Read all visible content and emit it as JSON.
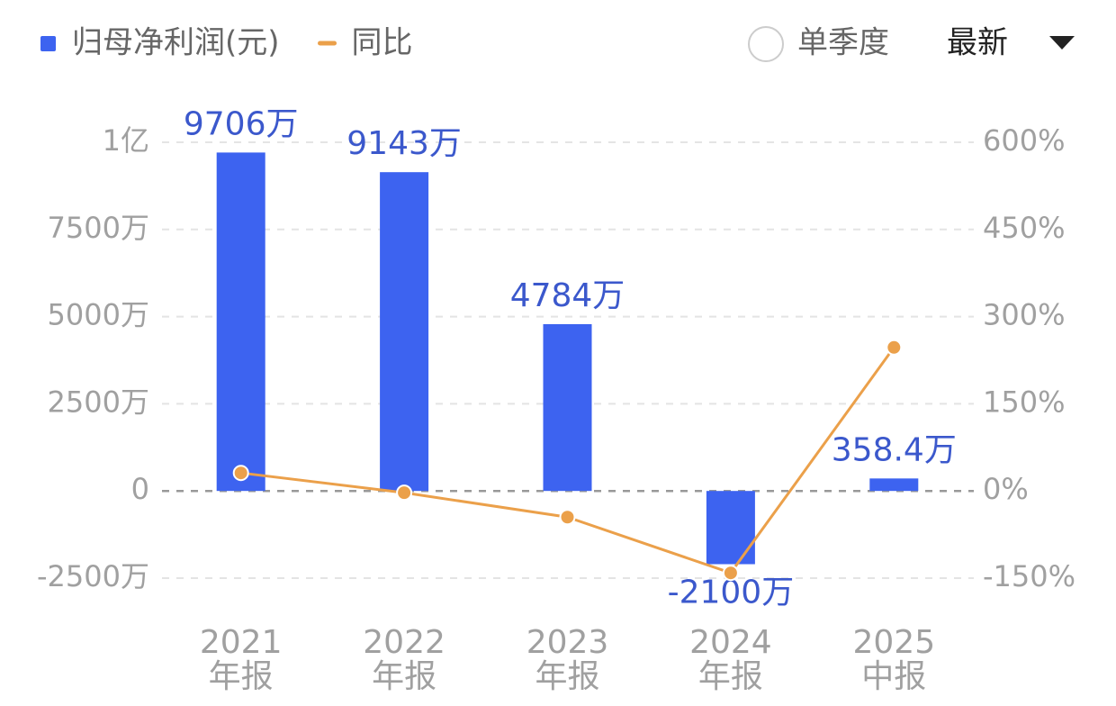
{
  "chart_data": {
    "type": "bar",
    "categories": [
      "2021年报",
      "2022年报",
      "2023年报",
      "2024年报",
      "2025中报"
    ],
    "series": [
      {
        "name": "归母净利润(元)",
        "color": "#3d63f0",
        "type": "bar",
        "values": [
          97060000,
          91430000,
          47840000,
          -21000000,
          3584000
        ],
        "value_labels": [
          "9706万",
          "9143万",
          "4784万",
          "-2100万",
          "358.4万"
        ]
      },
      {
        "name": "同比",
        "color": "#eba04a",
        "type": "line",
        "axis": "y2",
        "values": [
          31,
          -3,
          -45,
          -141,
          247
        ]
      }
    ],
    "ylim": [
      -25000000,
      100000000
    ],
    "yticks": [
      {
        "value": -25000000,
        "label": "-2500万"
      },
      0,
      {
        "value": 25000000,
        "label": "2500万"
      },
      {
        "value": 50000000,
        "label": "5000万"
      },
      {
        "value": 75000000,
        "label": "7500万"
      },
      {
        "value": 100000000,
        "label": "1亿"
      }
    ],
    "y2lim": [
      -150,
      600
    ],
    "y2ticks": [
      {
        "value": -150,
        "label": "-150%"
      },
      {
        "value": 0,
        "label": "0%"
      },
      {
        "value": 150,
        "label": "150%"
      },
      {
        "value": 300,
        "label": "300%"
      },
      {
        "value": 450,
        "label": "450%"
      },
      {
        "value": 600,
        "label": "600%"
      }
    ],
    "grid": true
  },
  "controls": {
    "single_quarter": "单季度",
    "latest": "最新"
  }
}
